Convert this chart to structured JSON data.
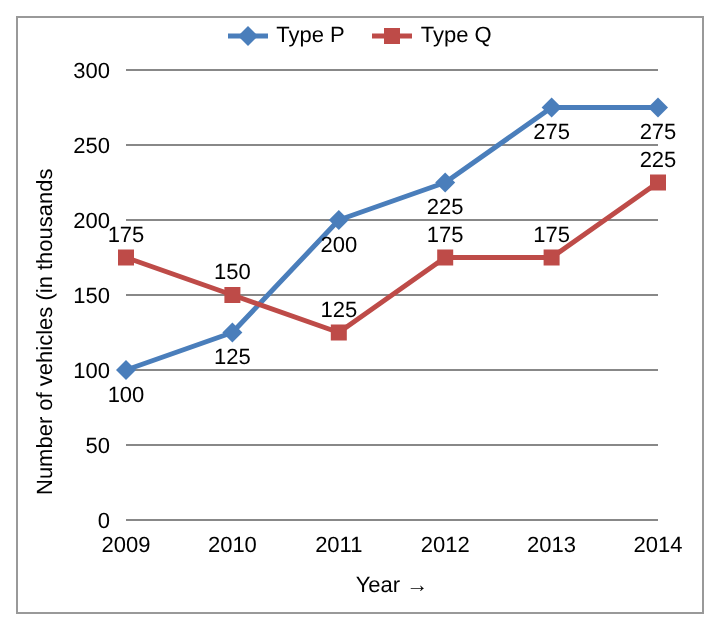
{
  "chart_data": {
    "type": "line",
    "xlabel": "Year →",
    "ylabel": "Number of vehicles (in thousands",
    "categories": [
      "2009",
      "2010",
      "2011",
      "2012",
      "2013",
      "2014"
    ],
    "series": [
      {
        "name": "Type P",
        "color": "#4a7ebb",
        "marker": "diamond",
        "values": [
          100,
          125,
          200,
          225,
          275,
          275
        ]
      },
      {
        "name": "Type Q",
        "color": "#be4b48",
        "marker": "square",
        "values": [
          175,
          150,
          125,
          175,
          175,
          225
        ]
      }
    ],
    "ylim": [
      0,
      300
    ],
    "yticks": [
      0,
      50,
      100,
      150,
      200,
      250,
      300
    ],
    "grid": "y",
    "legend": "top",
    "data_labels": true,
    "line_style": "solid"
  }
}
